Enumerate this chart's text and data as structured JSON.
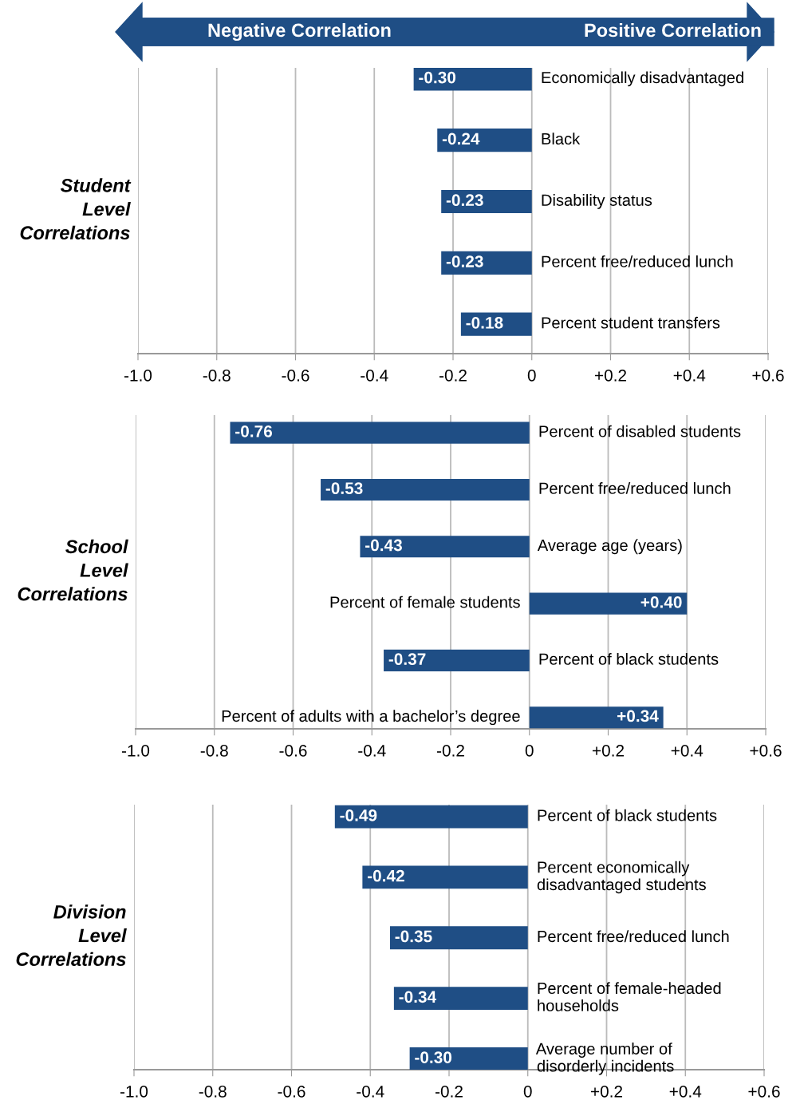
{
  "chart_data": [
    {
      "type": "bar",
      "orientation": "horizontal",
      "title": "Student Level Correlations",
      "annotations": [
        "Negative Correlation",
        "Positive Correlation"
      ],
      "categories": [
        "Economically disadvantaged",
        "Black",
        "Disability status",
        "Percent free/reduced lunch",
        "Percent student transfers"
      ],
      "values": [
        -0.3,
        -0.24,
        -0.23,
        -0.23,
        -0.18
      ],
      "value_labels": [
        "-0.30",
        "-0.24",
        "-0.23",
        "-0.23",
        "-0.18"
      ],
      "color": "#1f4e85",
      "xlim": [
        -1.0,
        0.6
      ],
      "xticks": [
        {
          "value": -1.0,
          "label": "-1.0"
        },
        -0.8,
        -0.6,
        -0.4,
        -0.2,
        0,
        {
          "value": 0.2,
          "label": "+0.2"
        },
        {
          "value": 0.4,
          "label": "+0.4"
        },
        {
          "value": 0.6,
          "label": "+0.6"
        }
      ],
      "grid": "x",
      "tick_labels": "x"
    },
    {
      "type": "bar",
      "orientation": "horizontal",
      "title": "School Level Correlations",
      "categories": [
        "Percent of disabled students",
        "Percent free/reduced lunch",
        "Average age (years)",
        "Percent of female students",
        "Percent of black students",
        "Percent of adults with a bachelor’s degree"
      ],
      "values": [
        -0.76,
        -0.53,
        -0.43,
        0.4,
        -0.37,
        0.34
      ],
      "value_labels": [
        "-0.76",
        "-0.53",
        "-0.43",
        "+0.40",
        "-0.37",
        "+0.34"
      ],
      "color": "#1f4e85",
      "xlim": [
        -1.0,
        0.6
      ],
      "xticks": [
        {
          "value": -1.0,
          "label": "-1.0"
        },
        -0.8,
        -0.6,
        -0.4,
        -0.2,
        0,
        {
          "value": 0.2,
          "label": "+0.2"
        },
        {
          "value": 0.4,
          "label": "+0.4"
        },
        {
          "value": 0.6,
          "label": "+0.6"
        }
      ],
      "grid": "x",
      "tick_labels": "x"
    },
    {
      "type": "bar",
      "orientation": "horizontal",
      "title": "Division Level Correlations",
      "categories": [
        "Percent of black students",
        "Percent economically disadvantaged students",
        "Percent free/reduced lunch",
        "Percent of female-headed households",
        "Average number of disorderly incidents"
      ],
      "values": [
        -0.49,
        -0.42,
        -0.35,
        -0.34,
        -0.3
      ],
      "value_labels": [
        "-0.49",
        "-0.42",
        "-0.35",
        "-0.34",
        "-0.30"
      ],
      "color": "#1f4e85",
      "xlim": [
        -1.0,
        0.6
      ],
      "xticks": [
        {
          "value": -1.0,
          "label": "-1.0"
        },
        -0.8,
        -0.6,
        -0.4,
        -0.2,
        0,
        {
          "value": 0.2,
          "label": "+0.2"
        },
        {
          "value": 0.4,
          "label": "+0.4"
        },
        {
          "value": 0.6,
          "label": "+0.6"
        }
      ],
      "grid": "x",
      "tick_labels": "x"
    }
  ]
}
